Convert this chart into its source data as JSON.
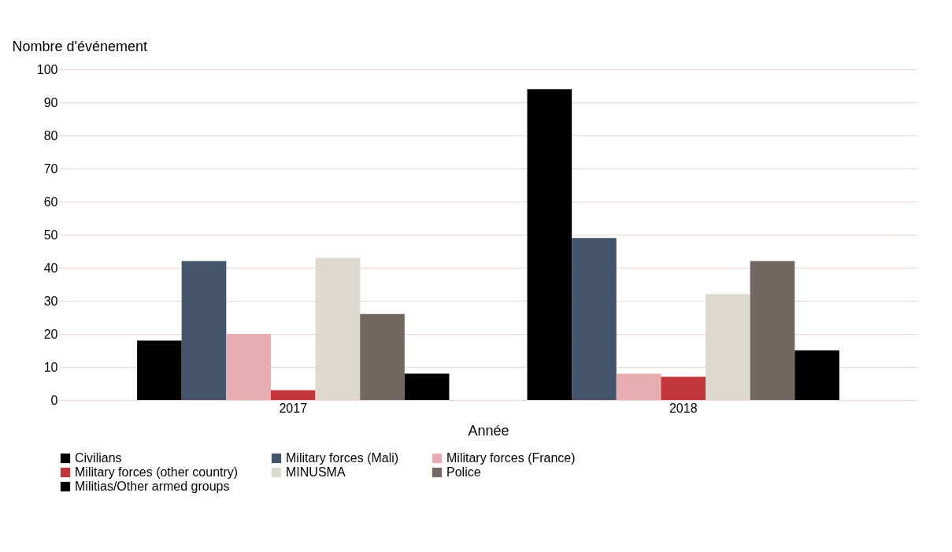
{
  "chart_data": {
    "type": "bar",
    "xlabel": "Année",
    "ylabel": "Nombre d'événement",
    "categories": [
      "2017",
      "2018"
    ],
    "series": [
      {
        "name": "Civilians",
        "color": "#000000",
        "values": [
          18,
          94
        ]
      },
      {
        "name": "Military forces (Mali)",
        "color": "#44546a",
        "values": [
          42,
          49
        ]
      },
      {
        "name": "Military forces (France)",
        "color": "#e8adb0",
        "values": [
          20,
          8
        ]
      },
      {
        "name": "Military forces (other country)",
        "color": "#c3363c",
        "values": [
          3,
          7
        ]
      },
      {
        "name": "MINUSMA",
        "color": "#ded9ce",
        "values": [
          43,
          32
        ]
      },
      {
        "name": "Police",
        "color": "#726861",
        "values": [
          26,
          42
        ]
      },
      {
        "name": "Militias/Other armed groups",
        "color": "#000000",
        "values": [
          8,
          15
        ]
      }
    ],
    "ylim": [
      0,
      100
    ],
    "yticks": [
      0,
      10,
      20,
      30,
      40,
      50,
      60,
      70,
      80,
      90,
      100
    ],
    "grid": "y",
    "legend": "bottom"
  }
}
